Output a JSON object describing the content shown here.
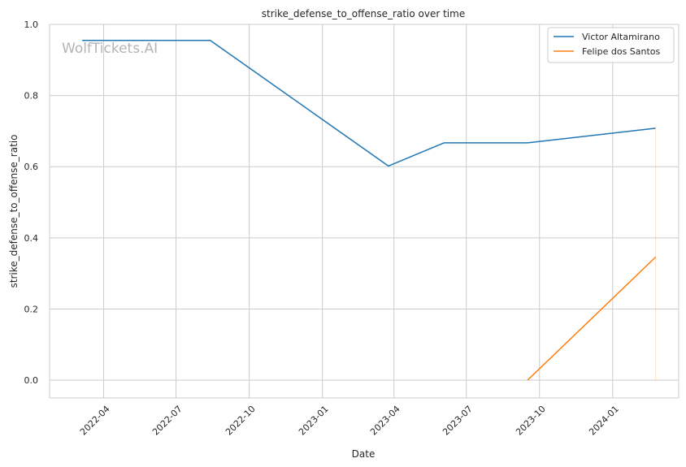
{
  "chart_data": {
    "type": "line",
    "title": "strike_defense_to_offense_ratio over time",
    "xlabel": "Date",
    "ylabel": "strike_defense_to_offense_ratio",
    "watermark": "WolfTickets.AI",
    "x_ticks": [
      "2022-04",
      "2022-07",
      "2022-10",
      "2023-01",
      "2023-04",
      "2023-07",
      "2023-10",
      "2024-01"
    ],
    "y_ticks": [
      "0.0",
      "0.2",
      "0.4",
      "0.6",
      "0.8",
      "1.0"
    ],
    "xlim": [
      "2022-01-23",
      "2024-03-24"
    ],
    "ylim": [
      -0.05,
      1.0
    ],
    "grid": true,
    "legend_position": "top-right",
    "series": [
      {
        "name": "Victor Altamirano",
        "color": "#1f77b4",
        "x": [
          "2022-03-05",
          "2022-08-13",
          "2023-03-25",
          "2023-06-03",
          "2023-09-16",
          "2024-02-24"
        ],
        "y": [
          0.955,
          0.955,
          0.602,
          0.667,
          0.667,
          0.708
        ]
      },
      {
        "name": "Felipe dos Santos",
        "color": "#ff7f0e",
        "x": [
          "2023-09-16",
          "2024-02-24"
        ],
        "y": [
          0.0,
          0.346
        ]
      }
    ]
  }
}
